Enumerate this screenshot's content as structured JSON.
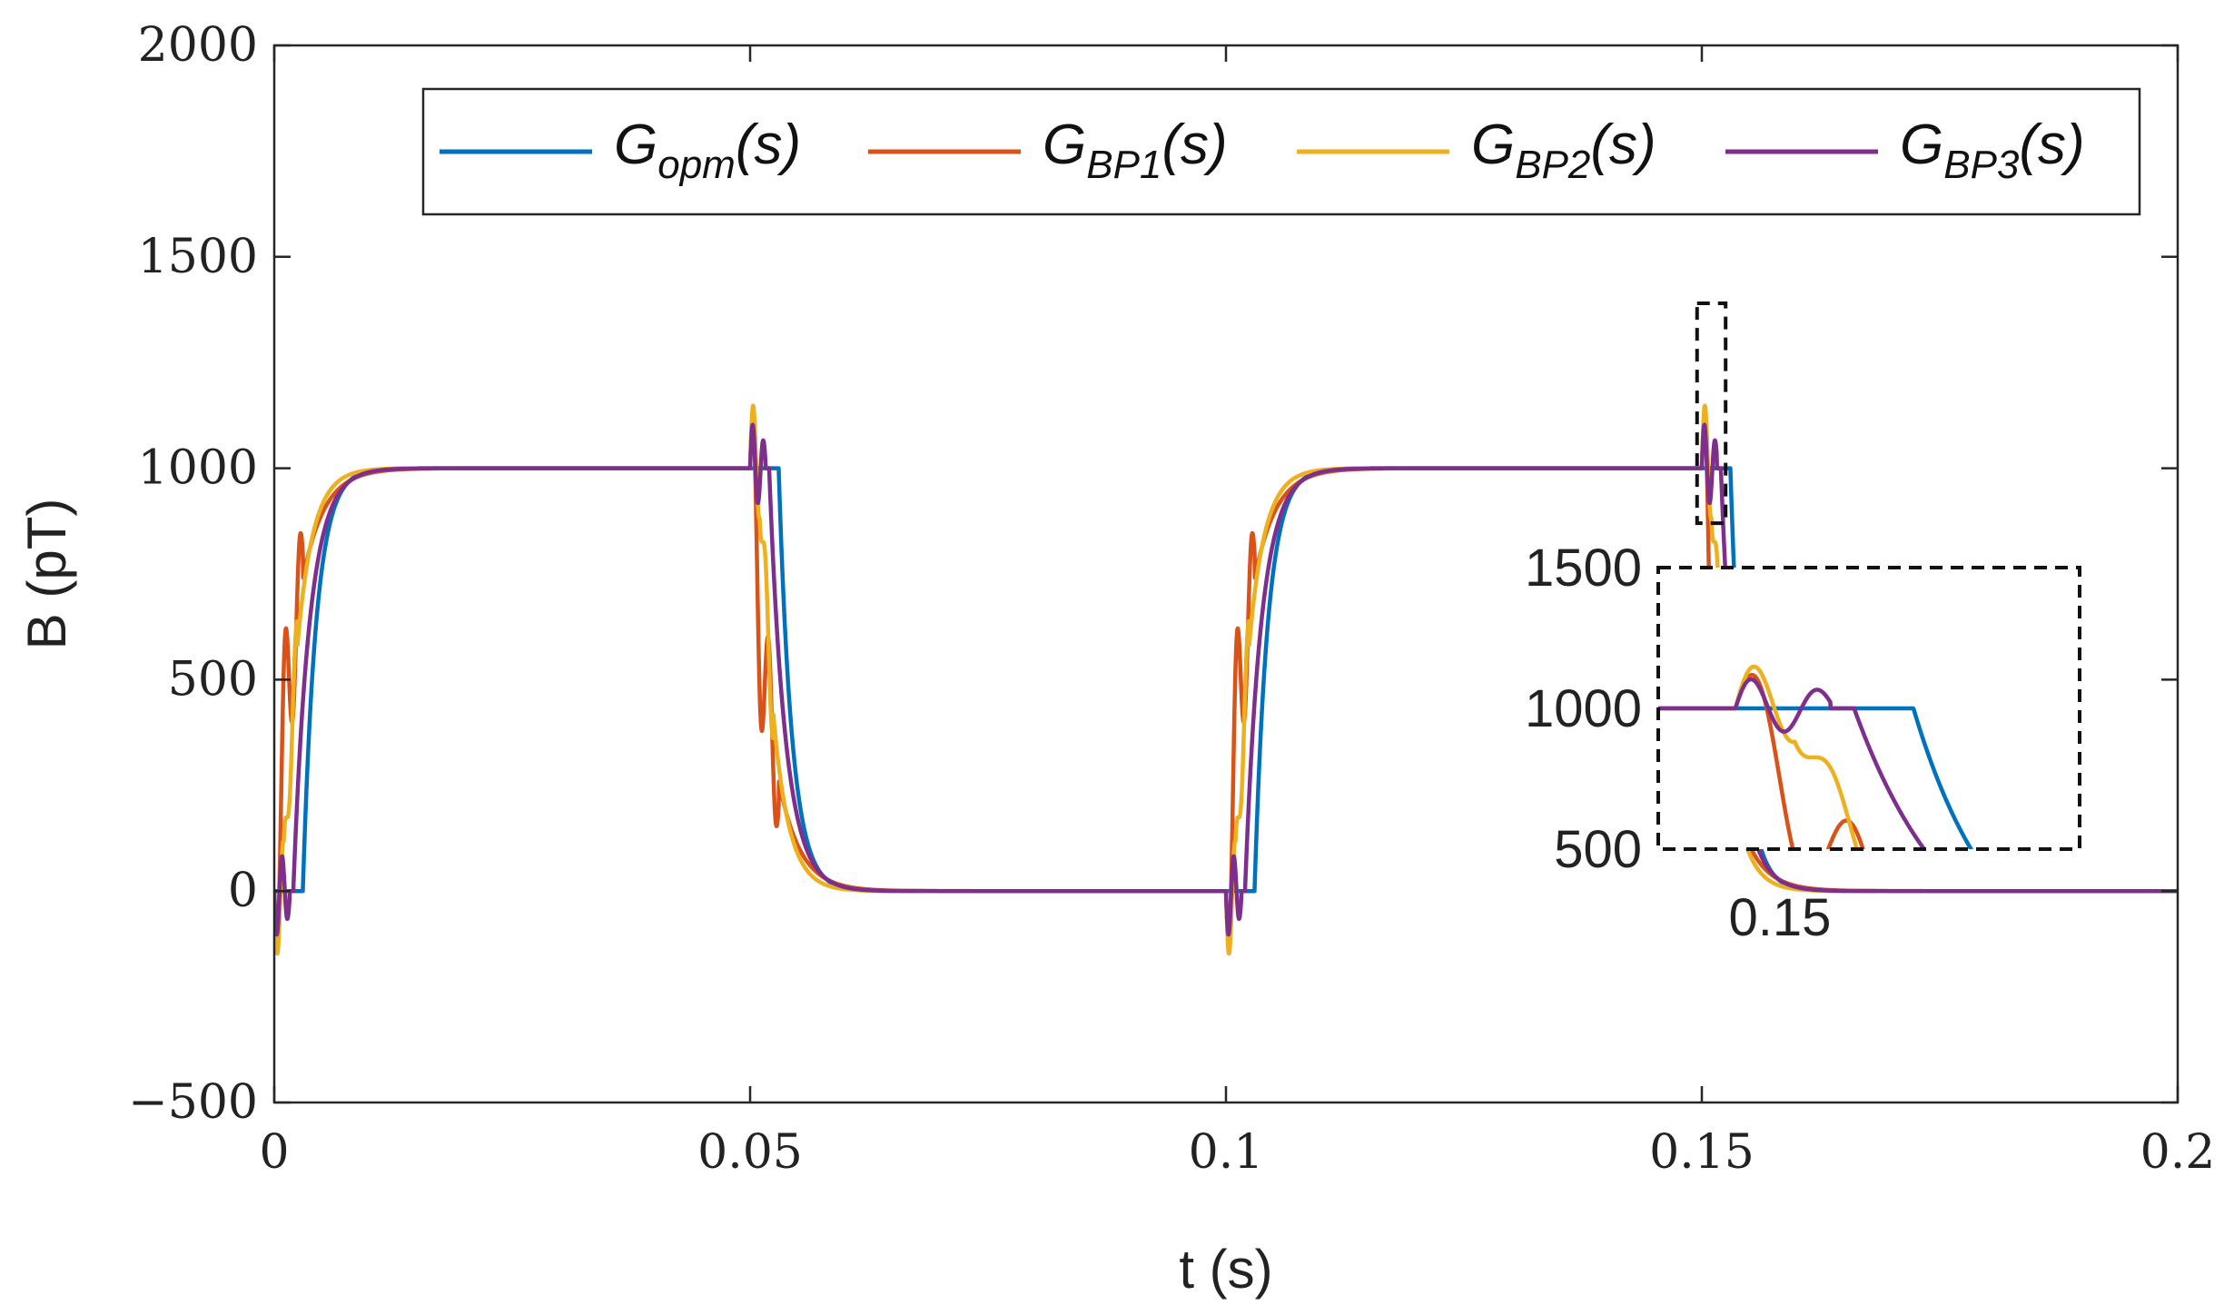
{
  "chart_data": {
    "type": "line",
    "xlabel": "t (s)",
    "ylabel": "B (pT)",
    "xlim": [
      0,
      0.2
    ],
    "ylim": [
      -500,
      2000
    ],
    "xticks": [
      0,
      0.05,
      0.1,
      0.15,
      0.2
    ],
    "xtick_labels": [
      "0",
      "0.05",
      "0.1",
      "0.15",
      "0.2"
    ],
    "yticks": [
      -500,
      0,
      500,
      1000,
      1500,
      2000
    ],
    "ytick_labels": [
      "−500",
      "0",
      "500",
      "1000",
      "1500",
      "2000"
    ],
    "grid": false,
    "legend_position": "top-right",
    "legend": [
      {
        "base": "G",
        "sub": "opm",
        "tail": "(s)"
      },
      {
        "base": "G",
        "sub": "BP1",
        "tail": "(s)"
      },
      {
        "base": "G",
        "sub": "BP2",
        "tail": "(s)"
      },
      {
        "base": "G",
        "sub": "BP3",
        "tail": "(s)"
      }
    ],
    "series": [
      {
        "name": "G_opm(s)",
        "color": "#0072BD",
        "lag": 0.003,
        "tau": 0.0014,
        "ring_amp": 0,
        "ring_freq": 0,
        "ring_damp": 0.001,
        "ring_dur": 0
      },
      {
        "name": "G_BP1(s)",
        "color": "#D95319",
        "lag": 0.0,
        "tau": 0.00225,
        "ring_amp": 280,
        "ring_freq": 640,
        "ring_damp": 0.004,
        "ring_dur": 0.003
      },
      {
        "name": "G_BP2(s)",
        "color": "#EDB120",
        "lag": 0.001,
        "tau": 0.00165,
        "ring_amp": 165,
        "ring_freq": 760,
        "ring_damp": 0.003,
        "ring_dur": 0.0024
      },
      {
        "name": "G_BP3(s)",
        "color": "#7E2F8E",
        "lag": 0.002,
        "tau": 0.0017,
        "ring_amp": 115,
        "ring_freq": 900,
        "ring_damp": 0.0025,
        "ring_dur": 0.0016
      }
    ],
    "signal": {
      "low": 0,
      "high": 1000,
      "edges": [
        {
          "t": 0.0,
          "dir": 1
        },
        {
          "t": 0.05,
          "dir": -1
        },
        {
          "t": 0.1,
          "dir": 1
        },
        {
          "t": 0.15,
          "dir": -1
        }
      ]
    },
    "inset": {
      "xlim": [
        0.1487,
        0.1558
      ],
      "ylim": [
        500,
        1500
      ],
      "yticks": [
        500,
        1000,
        1500
      ],
      "ytick_labels": [
        "500",
        "1000",
        "1500"
      ],
      "xtick_label": "0.15",
      "zoom_box": {
        "xlim": [
          0.1495,
          0.1525
        ],
        "ylim": [
          870,
          1390
        ]
      }
    }
  }
}
